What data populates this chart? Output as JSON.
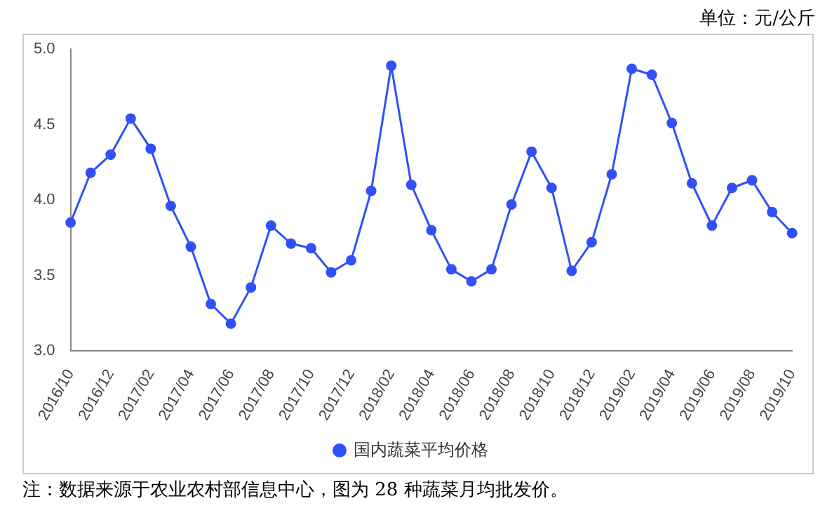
{
  "chart_data": {
    "type": "line",
    "categories": [
      "2016/10",
      null,
      "2016/12",
      null,
      "2017/02",
      null,
      "2017/04",
      null,
      "2017/06",
      null,
      "2017/08",
      null,
      "2017/10",
      null,
      "2017/12",
      null,
      "2018/02",
      null,
      "2018/04",
      null,
      "2018/06",
      null,
      "2018/08",
      null,
      "2018/10",
      null,
      "2018/12",
      null,
      "2019/02",
      null,
      "2019/04",
      null,
      "2019/06",
      null,
      "2019/08",
      null,
      "2019/10"
    ],
    "series": [
      {
        "name": "国内蔬菜平均价格",
        "color": "#3050f8",
        "values": [
          3.85,
          4.18,
          4.3,
          4.54,
          4.34,
          3.96,
          3.69,
          3.31,
          3.18,
          3.42,
          3.83,
          3.71,
          3.68,
          3.52,
          3.6,
          4.06,
          4.89,
          4.1,
          3.8,
          3.54,
          3.46,
          3.54,
          3.97,
          4.32,
          4.08,
          3.53,
          3.72,
          4.17,
          4.87,
          4.83,
          4.51,
          4.11,
          3.83,
          4.08,
          4.13,
          3.92,
          3.78
        ]
      }
    ],
    "ylim": [
      3.0,
      5.0
    ],
    "yticks": [
      {
        "value": 3,
        "label": "3.0"
      },
      {
        "value": 3.5,
        "label": "3.5"
      },
      {
        "value": 4,
        "label": "4.0"
      },
      {
        "value": 4.5,
        "label": "4.5"
      },
      {
        "value": 5,
        "label": "5.0"
      }
    ],
    "grid": false,
    "legend": "bottom",
    "marker": "circle",
    "line_style": "solid",
    "annotations": [
      "单位：元/公斤",
      "注：数据来源于农业农村部信息中心，图为 28 种蔬菜月均批发价。"
    ]
  }
}
